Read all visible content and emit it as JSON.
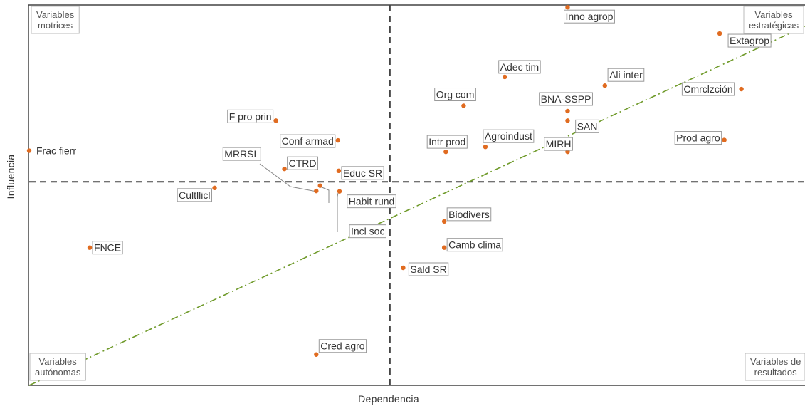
{
  "chart_data": {
    "type": "scatter",
    "title": "",
    "xlabel": "Dependencia",
    "ylabel": "Influencia",
    "xlim": [
      0,
      1
    ],
    "ylim": [
      0,
      1
    ],
    "grid": false,
    "axis_ticks": false,
    "quadrant_dividers": {
      "x": 0.465,
      "y": 0.535
    },
    "diagonal_line": {
      "from": [
        0,
        0
      ],
      "to": [
        1,
        1
      ],
      "style": "dash-dot",
      "color": "#6f9a2a"
    },
    "point_color": "#e06b20",
    "quadrant_labels": [
      {
        "id": "motrices",
        "lines": [
          "Variables",
          "motrices"
        ],
        "corner": "top-left"
      },
      {
        "id": "estrategicas",
        "lines": [
          "Variables",
          "estratégicas"
        ],
        "corner": "top-right"
      },
      {
        "id": "autonomas",
        "lines": [
          "Variables",
          "autónomas"
        ],
        "corner": "bottom-left"
      },
      {
        "id": "resultados",
        "lines": [
          "Variables de",
          "resultados"
        ],
        "corner": "bottom-right"
      }
    ],
    "points": [
      {
        "label": "Frac fierr",
        "x": 0.0,
        "y": 0.617,
        "boxed": false
      },
      {
        "label": "FNCE",
        "x": 0.078,
        "y": 0.362,
        "boxed": true
      },
      {
        "label": "Cultllicl",
        "x": 0.239,
        "y": 0.519,
        "boxed": true
      },
      {
        "label": "F pro prin",
        "x": 0.318,
        "y": 0.696,
        "boxed": true
      },
      {
        "label": "Conf armad",
        "x": 0.398,
        "y": 0.644,
        "boxed": true
      },
      {
        "label": "CTRD",
        "x": 0.329,
        "y": 0.569,
        "boxed": true
      },
      {
        "label": "MRRSL",
        "x": 0.37,
        "y": 0.511,
        "boxed": true,
        "leader": true
      },
      {
        "label": "Habit rund",
        "x": 0.375,
        "y": 0.525,
        "boxed": true,
        "leader": true
      },
      {
        "label": "Incl soc",
        "x": 0.4,
        "y": 0.51,
        "boxed": true,
        "leader": true
      },
      {
        "label": "Educ SR",
        "x": 0.399,
        "y": 0.564,
        "boxed": true
      },
      {
        "label": "Cred agro",
        "x": 0.37,
        "y": 0.081,
        "boxed": true
      },
      {
        "label": "Sald SR",
        "x": 0.482,
        "y": 0.309,
        "boxed": true
      },
      {
        "label": "Biodivers",
        "x": 0.535,
        "y": 0.431,
        "boxed": true
      },
      {
        "label": "Camb clima",
        "x": 0.535,
        "y": 0.362,
        "boxed": true
      },
      {
        "label": "Intr prod",
        "x": 0.537,
        "y": 0.614,
        "boxed": true
      },
      {
        "label": "Org com",
        "x": 0.56,
        "y": 0.735,
        "boxed": true
      },
      {
        "label": "Agroindust",
        "x": 0.588,
        "y": 0.627,
        "boxed": true
      },
      {
        "label": "Adec tim",
        "x": 0.613,
        "y": 0.811,
        "boxed": true
      },
      {
        "label": "Inno agrop",
        "x": 0.694,
        "y": 0.994,
        "boxed": true
      },
      {
        "label": "BNA-SSPP",
        "x": 0.694,
        "y": 0.721,
        "boxed": true
      },
      {
        "label": "SAN",
        "x": 0.694,
        "y": 0.696,
        "boxed": true
      },
      {
        "label": "MIRH",
        "x": 0.694,
        "y": 0.614,
        "boxed": true
      },
      {
        "label": "Ali inter",
        "x": 0.742,
        "y": 0.788,
        "boxed": true
      },
      {
        "label": "Prod agro",
        "x": 0.896,
        "y": 0.645,
        "boxed": true
      },
      {
        "label": "Extagrop",
        "x": 0.89,
        "y": 0.925,
        "boxed": true
      },
      {
        "label": "Cmrclzción",
        "x": 0.918,
        "y": 0.779,
        "boxed": true
      }
    ]
  }
}
